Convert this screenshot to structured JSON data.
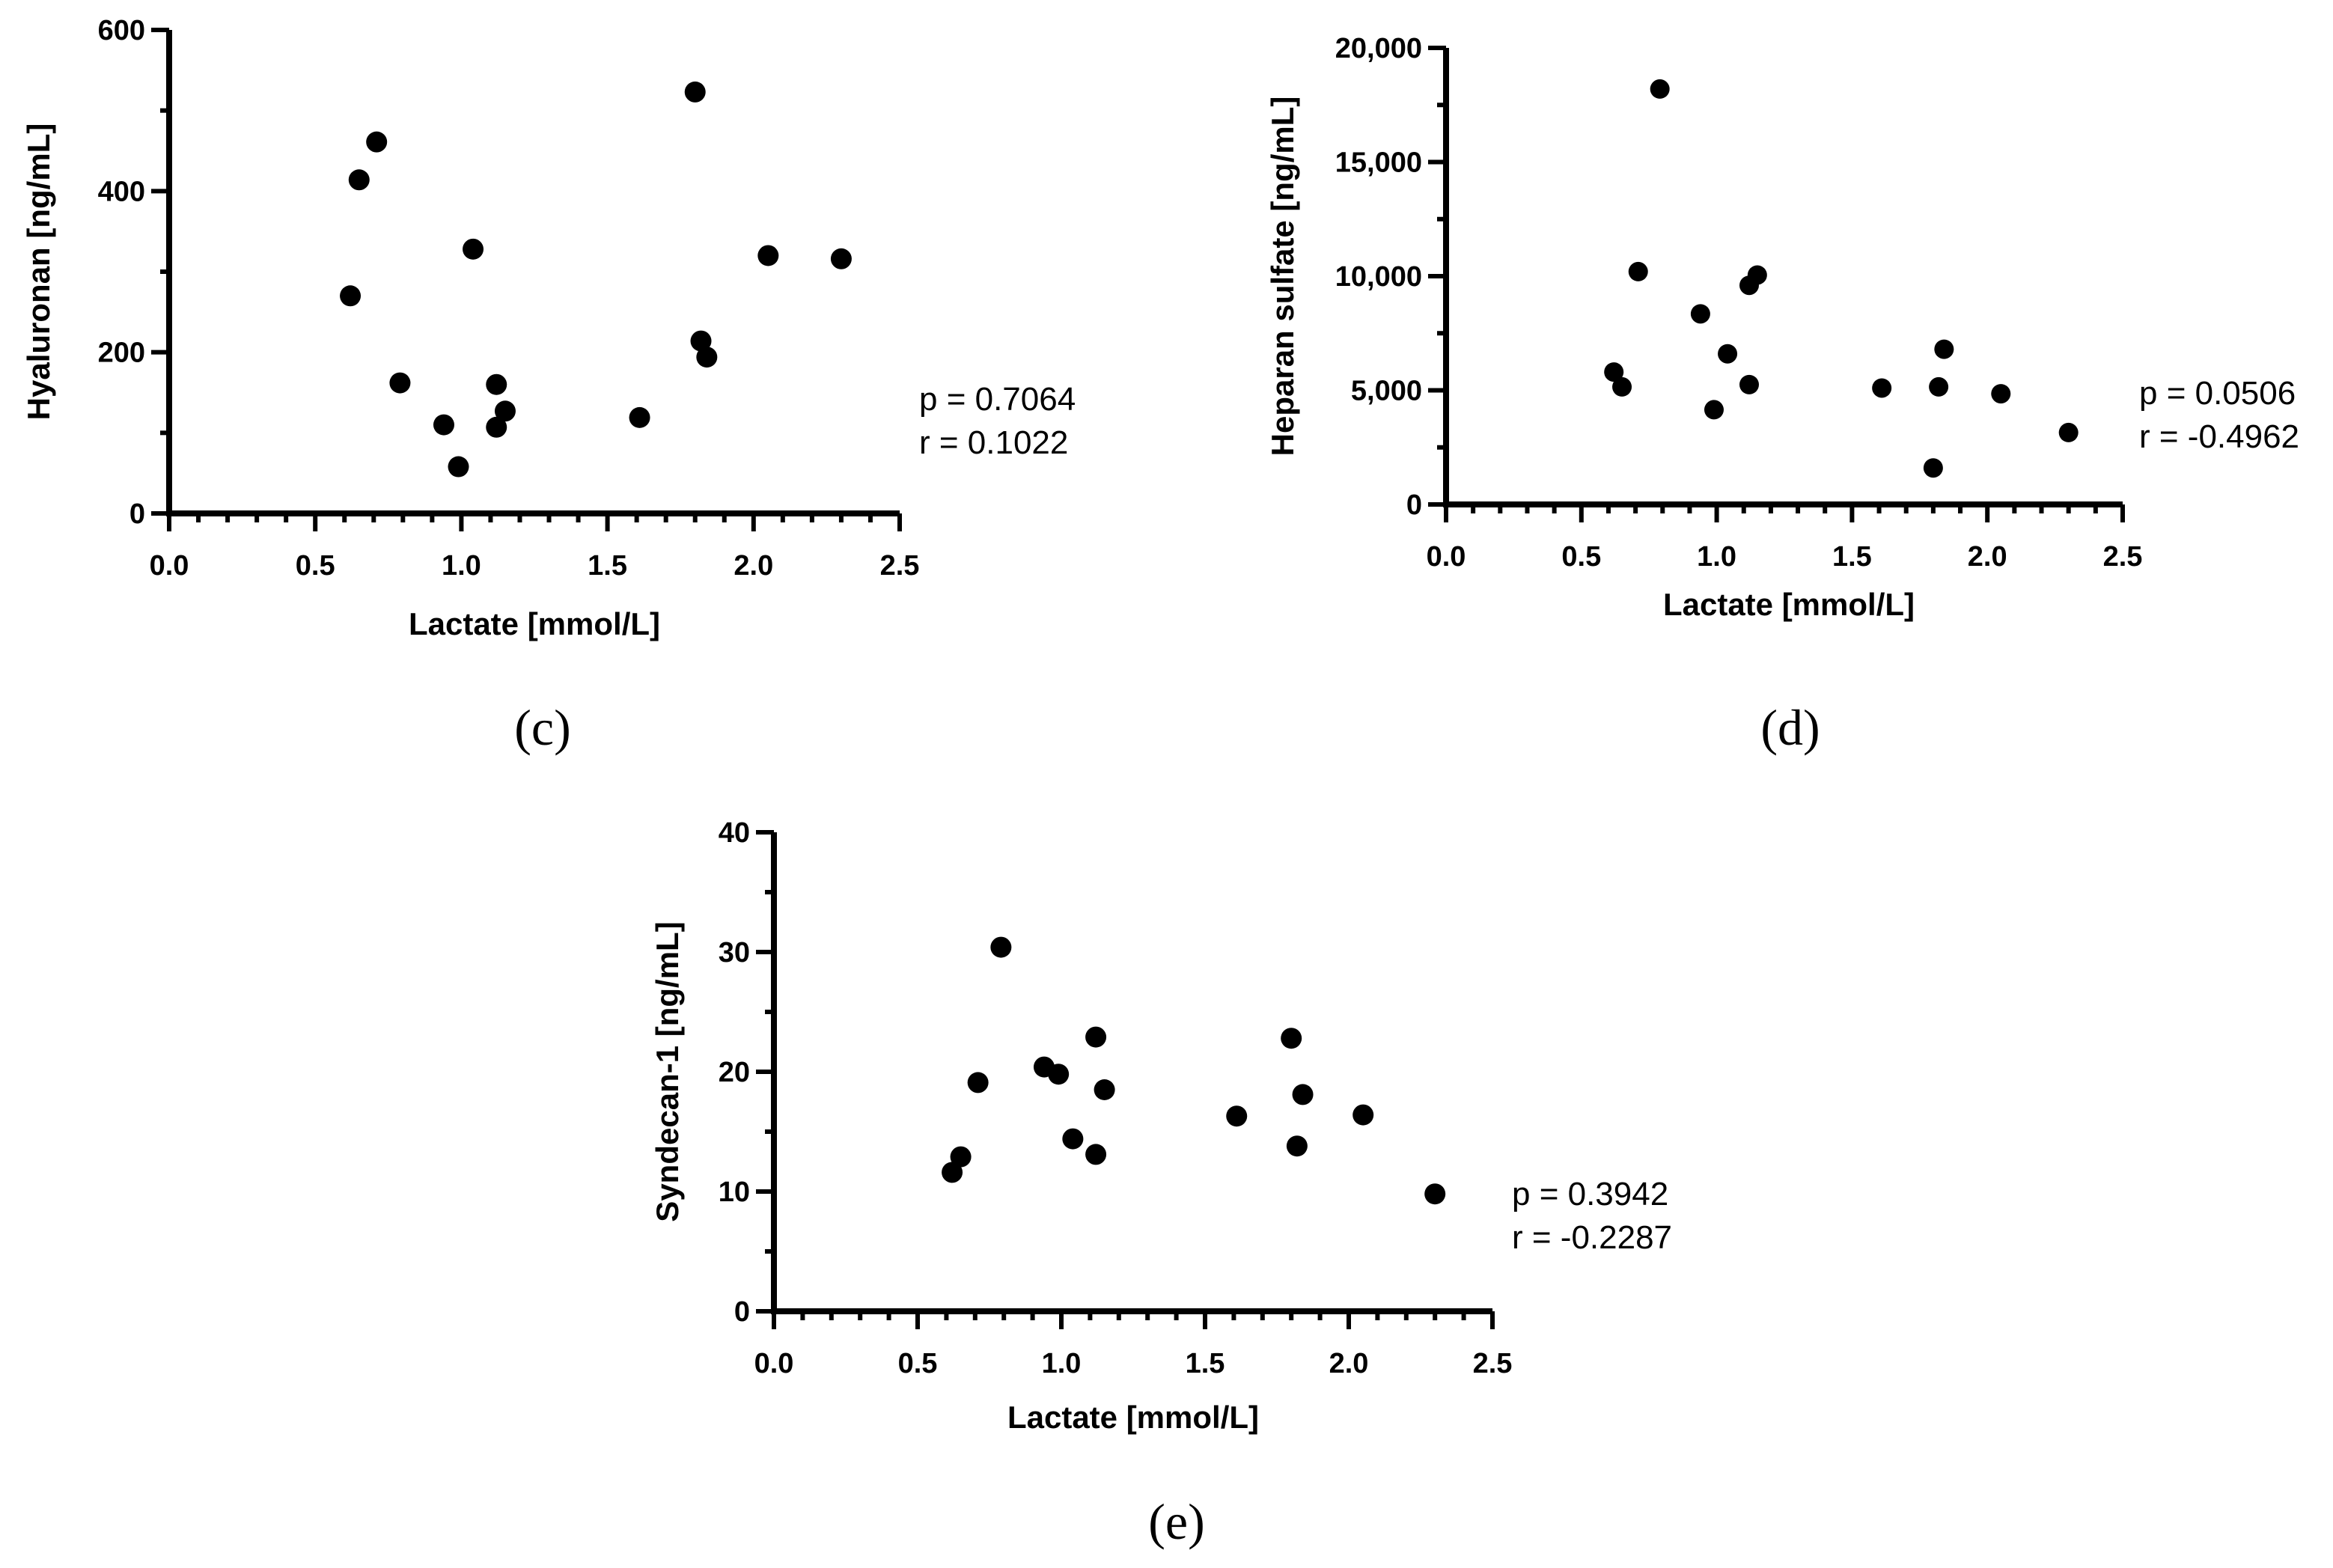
{
  "chart_data": [
    {
      "type": "scatter",
      "panel": "(c)",
      "xlabel": "Lactate [mmol/L]",
      "ylabel": "Hyaluronan [ng/mL]",
      "xlim": [
        0,
        2.5
      ],
      "ylim": [
        0,
        600
      ],
      "xticks": [
        0,
        0.5,
        1,
        1.5,
        2,
        2.5
      ],
      "xtick_labels": [
        "0.0",
        "0.5",
        "1.0",
        "1.5",
        "2.0",
        "2.5"
      ],
      "yticks": [
        0,
        200,
        400,
        600
      ],
      "ytick_labels": [
        "0",
        "200",
        "400",
        "600"
      ],
      "x_minor_step": 0.1,
      "y_minor_step": 100,
      "stats": {
        "p": "p = 0.7064",
        "r": "r = 0.1022"
      },
      "points": [
        {
          "x": 0.62,
          "y": 270
        },
        {
          "x": 0.65,
          "y": 414
        },
        {
          "x": 0.71,
          "y": 461
        },
        {
          "x": 0.79,
          "y": 162
        },
        {
          "x": 0.94,
          "y": 110
        },
        {
          "x": 0.99,
          "y": 58
        },
        {
          "x": 1.04,
          "y": 328
        },
        {
          "x": 1.12,
          "y": 160
        },
        {
          "x": 1.12,
          "y": 107
        },
        {
          "x": 1.15,
          "y": 127
        },
        {
          "x": 1.61,
          "y": 119
        },
        {
          "x": 1.8,
          "y": 523
        },
        {
          "x": 1.82,
          "y": 214
        },
        {
          "x": 1.84,
          "y": 194
        },
        {
          "x": 2.05,
          "y": 320
        },
        {
          "x": 2.3,
          "y": 316
        }
      ]
    },
    {
      "type": "scatter",
      "panel": "(d)",
      "xlabel": "Lactate [mmol/L]",
      "ylabel": "Heparan sulfate [ng/mL]",
      "xlim": [
        0,
        2.5
      ],
      "ylim": [
        0,
        20000
      ],
      "xticks": [
        0,
        0.5,
        1,
        1.5,
        2,
        2.5
      ],
      "xtick_labels": [
        "0.0",
        "0.5",
        "1.0",
        "1.5",
        "2.0",
        "2.5"
      ],
      "yticks": [
        0,
        5000,
        10000,
        15000,
        20000
      ],
      "ytick_labels": [
        "0",
        "5,000",
        "10,000",
        "15,000",
        "20,000"
      ],
      "x_minor_step": 0.1,
      "y_minor_step": 2500,
      "stats": {
        "p": "p = 0.0506",
        "r": "r = -0.4962"
      },
      "points": [
        {
          "x": 0.62,
          "y": 5800
        },
        {
          "x": 0.65,
          "y": 5150
        },
        {
          "x": 0.71,
          "y": 10200
        },
        {
          "x": 0.79,
          "y": 18200
        },
        {
          "x": 0.94,
          "y": 8350
        },
        {
          "x": 0.99,
          "y": 4150
        },
        {
          "x": 1.04,
          "y": 6600
        },
        {
          "x": 1.12,
          "y": 5250
        },
        {
          "x": 1.12,
          "y": 9600
        },
        {
          "x": 1.15,
          "y": 10050
        },
        {
          "x": 1.61,
          "y": 5100
        },
        {
          "x": 1.8,
          "y": 1600
        },
        {
          "x": 1.82,
          "y": 5150
        },
        {
          "x": 1.84,
          "y": 6800
        },
        {
          "x": 2.05,
          "y": 4850
        },
        {
          "x": 2.3,
          "y": 3150
        }
      ]
    },
    {
      "type": "scatter",
      "panel": "(e)",
      "xlabel": "Lactate [mmol/L]",
      "ylabel": "Syndecan-1 [ng/mL]",
      "xlim": [
        0,
        2.5
      ],
      "ylim": [
        0,
        40
      ],
      "xticks": [
        0,
        0.5,
        1,
        1.5,
        2,
        2.5
      ],
      "xtick_labels": [
        "0.0",
        "0.5",
        "1.0",
        "1.5",
        "2.0",
        "2.5"
      ],
      "yticks": [
        0,
        10,
        20,
        30,
        40
      ],
      "ytick_labels": [
        "0",
        "10",
        "20",
        "30",
        "40"
      ],
      "x_minor_step": 0.1,
      "y_minor_step": 5,
      "stats": {
        "p": "p = 0.3942",
        "r": "r = -0.2287"
      },
      "points": [
        {
          "x": 0.62,
          "y": 11.6
        },
        {
          "x": 0.65,
          "y": 12.9
        },
        {
          "x": 0.71,
          "y": 19.1
        },
        {
          "x": 0.79,
          "y": 30.4
        },
        {
          "x": 0.94,
          "y": 20.4
        },
        {
          "x": 0.99,
          "y": 19.8
        },
        {
          "x": 1.04,
          "y": 14.4
        },
        {
          "x": 1.12,
          "y": 22.9
        },
        {
          "x": 1.12,
          "y": 13.1
        },
        {
          "x": 1.15,
          "y": 18.5
        },
        {
          "x": 1.61,
          "y": 16.3
        },
        {
          "x": 1.8,
          "y": 22.8
        },
        {
          "x": 1.82,
          "y": 13.8
        },
        {
          "x": 1.84,
          "y": 18.1
        },
        {
          "x": 2.05,
          "y": 16.4
        },
        {
          "x": 2.3,
          "y": 9.8
        }
      ]
    }
  ]
}
